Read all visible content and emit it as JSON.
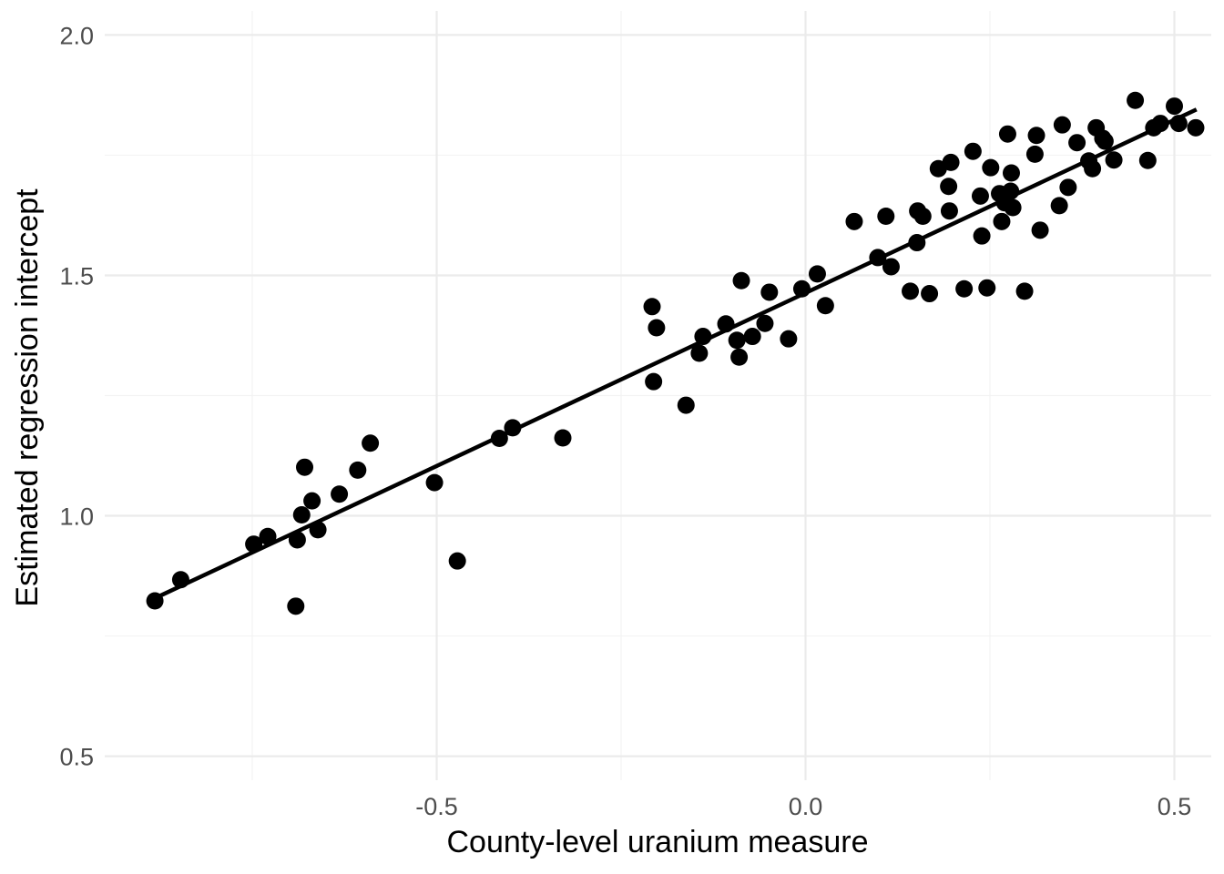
{
  "chart_data": {
    "type": "scatter",
    "title": "",
    "xlabel": "County-level uranium measure",
    "ylabel": "Estimated regression intercept",
    "xlim": [
      -0.95,
      0.55
    ],
    "ylim": [
      0.45,
      2.05
    ],
    "x_ticks": [
      {
        "value": -0.5,
        "label": "-0.5"
      },
      {
        "value": 0.0,
        "label": "0.0"
      },
      {
        "value": 0.5,
        "label": "0.5"
      }
    ],
    "y_ticks": [
      {
        "value": 0.5,
        "label": "0.5"
      },
      {
        "value": 1.0,
        "label": "1.0"
      },
      {
        "value": 1.5,
        "label": "1.5"
      },
      {
        "value": 2.0,
        "label": "2.0"
      }
    ],
    "x_minor": [
      -0.75,
      -0.25,
      0.25
    ],
    "y_minor": [
      0.75,
      1.25,
      1.75
    ],
    "grid": true,
    "colors": {
      "points": "#000000",
      "line": "#000000",
      "grid_major": "#ebebeb",
      "grid_minor": "#f3f3f3"
    },
    "fit_line": {
      "x": [
        -0.88,
        0.53
      ],
      "y": [
        0.83,
        1.845
      ]
    },
    "points": [
      [
        -0.882,
        0.823
      ],
      [
        -0.847,
        0.867
      ],
      [
        -0.748,
        0.941
      ],
      [
        -0.729,
        0.957
      ],
      [
        -0.691,
        0.812
      ],
      [
        -0.689,
        0.95
      ],
      [
        -0.683,
        1.002
      ],
      [
        -0.679,
        1.101
      ],
      [
        -0.669,
        1.031
      ],
      [
        -0.661,
        0.971
      ],
      [
        -0.632,
        1.045
      ],
      [
        -0.607,
        1.095
      ],
      [
        -0.59,
        1.151
      ],
      [
        -0.503,
        1.069
      ],
      [
        -0.472,
        0.906
      ],
      [
        -0.415,
        1.161
      ],
      [
        -0.397,
        1.183
      ],
      [
        -0.329,
        1.162
      ],
      [
        -0.208,
        1.435
      ],
      [
        -0.206,
        1.279
      ],
      [
        -0.202,
        1.391
      ],
      [
        -0.162,
        1.23
      ],
      [
        -0.144,
        1.338
      ],
      [
        -0.139,
        1.373
      ],
      [
        -0.108,
        1.399
      ],
      [
        -0.093,
        1.365
      ],
      [
        -0.09,
        1.33
      ],
      [
        -0.087,
        1.489
      ],
      [
        -0.072,
        1.373
      ],
      [
        -0.055,
        1.4
      ],
      [
        -0.049,
        1.465
      ],
      [
        -0.023,
        1.368
      ],
      [
        -0.005,
        1.472
      ],
      [
        0.016,
        1.503
      ],
      [
        0.027,
        1.437
      ],
      [
        0.066,
        1.612
      ],
      [
        0.098,
        1.537
      ],
      [
        0.109,
        1.623
      ],
      [
        0.116,
        1.518
      ],
      [
        0.142,
        1.467
      ],
      [
        0.151,
        1.568
      ],
      [
        0.152,
        1.634
      ],
      [
        0.159,
        1.623
      ],
      [
        0.168,
        1.462
      ],
      [
        0.18,
        1.722
      ],
      [
        0.194,
        1.685
      ],
      [
        0.195,
        1.634
      ],
      [
        0.197,
        1.735
      ],
      [
        0.215,
        1.472
      ],
      [
        0.227,
        1.758
      ],
      [
        0.237,
        1.665
      ],
      [
        0.239,
        1.582
      ],
      [
        0.246,
        1.474
      ],
      [
        0.251,
        1.724
      ],
      [
        0.263,
        1.67
      ],
      [
        0.266,
        1.612
      ],
      [
        0.27,
        1.651
      ],
      [
        0.274,
        1.794
      ],
      [
        0.278,
        1.675
      ],
      [
        0.279,
        1.713
      ],
      [
        0.281,
        1.641
      ],
      [
        0.297,
        1.467
      ],
      [
        0.311,
        1.752
      ],
      [
        0.313,
        1.791
      ],
      [
        0.318,
        1.594
      ],
      [
        0.344,
        1.645
      ],
      [
        0.348,
        1.813
      ],
      [
        0.356,
        1.683
      ],
      [
        0.368,
        1.776
      ],
      [
        0.384,
        1.738
      ],
      [
        0.389,
        1.722
      ],
      [
        0.394,
        1.807
      ],
      [
        0.403,
        1.785
      ],
      [
        0.406,
        1.779
      ],
      [
        0.418,
        1.74
      ],
      [
        0.447,
        1.864
      ],
      [
        0.464,
        1.739
      ],
      [
        0.472,
        1.807
      ],
      [
        0.481,
        1.816
      ],
      [
        0.5,
        1.852
      ],
      [
        0.506,
        1.816
      ],
      [
        0.529,
        1.807
      ]
    ]
  }
}
